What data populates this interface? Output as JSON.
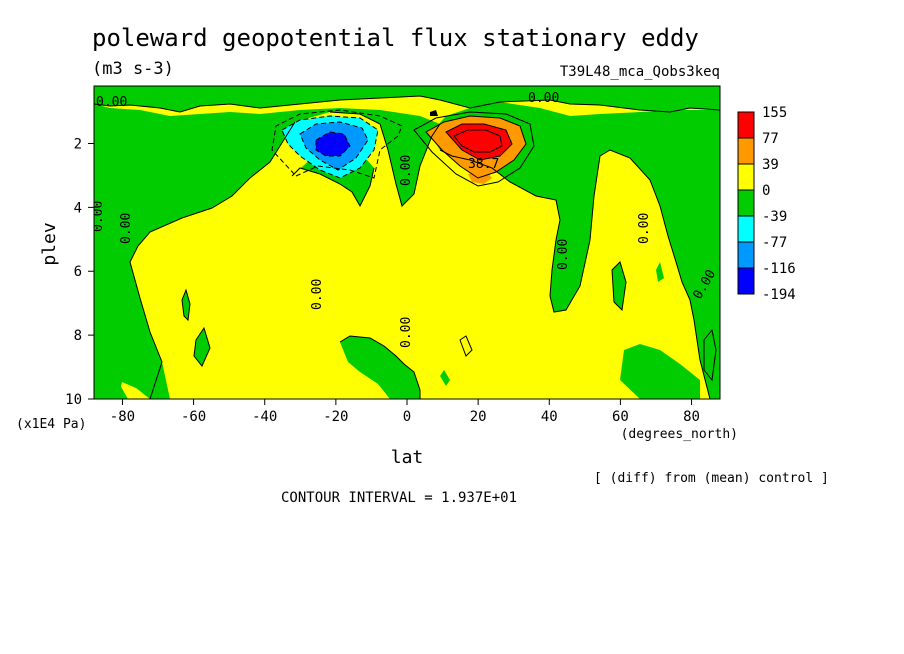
{
  "chart_data": {
    "type": "heatmap",
    "title": "poleward geopotential flux stationary eddy",
    "units": "(m3 s-3)",
    "run_label": "T39L48_mca_Qobs3keq",
    "xlabel": "lat",
    "x_units": "(degrees_north)",
    "ylabel": "plev",
    "y_units": "(x1E4 Pa)",
    "x_ticks": [
      "-80",
      "-60",
      "-40",
      "-20",
      "0",
      "20",
      "40",
      "60",
      "80"
    ],
    "y_ticks": [
      "2",
      "4",
      "6",
      "8",
      "10"
    ],
    "xlim": [
      -88,
      88
    ],
    "ylim": [
      0.2,
      10
    ],
    "y_inverted": true,
    "legend_levels": [
      "155",
      "77",
      "39",
      "0",
      "-39",
      "-77",
      "-116",
      "-194"
    ],
    "legend_colors": [
      "#ff0000",
      "#ff9900",
      "#ffff00",
      "#00cc00",
      "#00ffff",
      "#0099ff",
      "#0000ff"
    ],
    "contour_labels": [
      "0.00",
      "0.00",
      "0.00",
      "0.00",
      "0.00",
      "0.00",
      "0.00",
      "0.00",
      "0.00",
      "0.00",
      "38.7"
    ],
    "extrema": [
      {
        "lat": -22,
        "plev": 2.0,
        "value": -194
      },
      {
        "lat": 20,
        "plev": 1.8,
        "value": 155
      }
    ],
    "footer_note": "[ (diff) from (mean) control ]",
    "contour_interval": "CONTOUR INTERVAL = 1.937E+01"
  }
}
